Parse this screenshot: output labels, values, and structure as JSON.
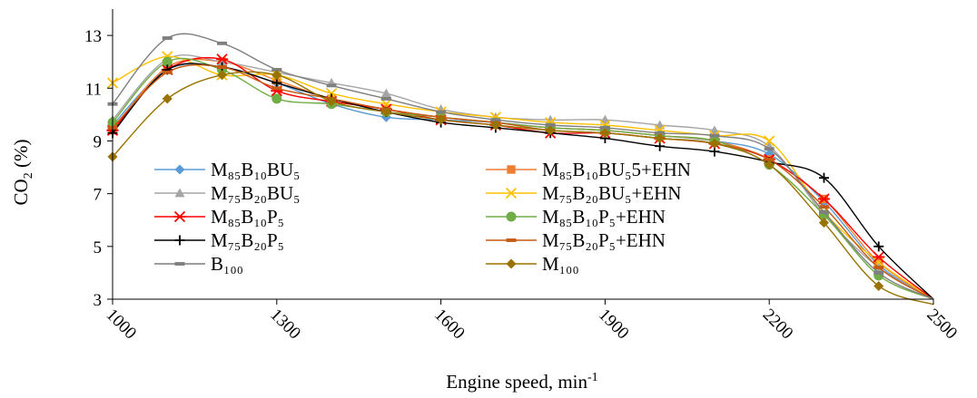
{
  "chart_data": {
    "type": "line",
    "xlabel": "Engine speed, min",
    "xlabel_sup": "-1",
    "ylabel": "CO",
    "ylabel_sub": "2",
    "ylabel_unit": " (%)",
    "xlim": [
      1000,
      2500
    ],
    "ylim": [
      3,
      14
    ],
    "x_ticks": [
      1000,
      1300,
      1600,
      1900,
      2200,
      2500
    ],
    "y_ticks": [
      3,
      5,
      7,
      9,
      11,
      13
    ],
    "grid": false,
    "legend_position": "lower-left, two columns",
    "x": [
      1000,
      1100,
      1200,
      1300,
      1400,
      1500,
      1600,
      1700,
      1800,
      1900,
      2000,
      2100,
      2200,
      2300,
      2400,
      2500
    ],
    "series": [
      {
        "name": "M₈₅B₁₀BU₅",
        "color": "#5b9bd5",
        "marker": "diamond",
        "values": [
          9.6,
          11.7,
          11.8,
          11.2,
          10.4,
          9.9,
          9.8,
          9.7,
          9.5,
          9.4,
          9.2,
          9.0,
          8.5,
          6.7,
          4.3,
          3.0
        ]
      },
      {
        "name": "M₈₅B₁₀BU₅5+EHN",
        "color": "#ed7d31",
        "marker": "square",
        "values": [
          9.4,
          11.8,
          12.0,
          11.3,
          10.6,
          10.2,
          9.9,
          9.7,
          9.5,
          9.4,
          9.2,
          9.0,
          8.3,
          6.8,
          4.4,
          3.0
        ]
      },
      {
        "name": "M₇₅B₂₀BU₅",
        "color": "#a5a5a5",
        "marker": "triangle",
        "values": [
          9.8,
          12.1,
          12.0,
          11.6,
          11.2,
          10.8,
          10.2,
          9.9,
          9.8,
          9.8,
          9.6,
          9.4,
          8.8,
          6.2,
          4.2,
          3.0
        ]
      },
      {
        "name": "M₇₅B₂₀BU₅+EHN",
        "color": "#ffc000",
        "marker": "x",
        "values": [
          11.2,
          12.2,
          11.5,
          11.5,
          10.8,
          10.4,
          10.1,
          9.9,
          9.7,
          9.6,
          9.4,
          9.2,
          9.0,
          6.3,
          4.4,
          3.0
        ]
      },
      {
        "name": "M₈₅B₁₀P₅",
        "color": "#ff0000",
        "marker": "star",
        "values": [
          9.4,
          11.7,
          12.1,
          10.9,
          10.5,
          10.2,
          9.8,
          9.6,
          9.3,
          9.3,
          9.1,
          8.9,
          8.3,
          6.8,
          4.6,
          3.0
        ]
      },
      {
        "name": "M₈₅B₁₀P₅+EHN",
        "color": "#70ad47",
        "marker": "circle",
        "values": [
          9.7,
          12.0,
          11.7,
          10.6,
          10.4,
          10.1,
          9.9,
          9.7,
          9.5,
          9.4,
          9.2,
          9.0,
          8.1,
          6.2,
          3.9,
          3.0
        ]
      },
      {
        "name": "M₇₅B₂₀P₅",
        "color": "#000000",
        "marker": "plus",
        "values": [
          9.3,
          11.7,
          11.8,
          11.2,
          10.6,
          10.1,
          9.7,
          9.5,
          9.3,
          9.1,
          8.8,
          8.6,
          8.2,
          7.6,
          5.0,
          3.0
        ]
      },
      {
        "name": "M₇₅B₂₀P₅+EHN",
        "color": "#c55a11",
        "marker": "dash",
        "values": [
          9.5,
          11.6,
          11.8,
          11.0,
          10.6,
          10.2,
          9.9,
          9.7,
          9.4,
          9.3,
          9.1,
          8.9,
          8.3,
          6.5,
          4.2,
          3.0
        ]
      },
      {
        "name": "B₁₀₀",
        "color": "#7f7f7f",
        "marker": "dash",
        "values": [
          10.4,
          12.9,
          12.7,
          11.7,
          11.1,
          10.6,
          10.1,
          9.8,
          9.6,
          9.5,
          9.3,
          9.2,
          8.7,
          6.3,
          4.0,
          3.0
        ]
      },
      {
        "name": "M₁₀₀",
        "color": "#997300",
        "marker": "diamond",
        "values": [
          8.4,
          10.6,
          11.5,
          11.5,
          10.5,
          10.1,
          9.8,
          9.6,
          9.4,
          9.3,
          9.1,
          8.9,
          8.1,
          5.9,
          3.5,
          2.8
        ]
      }
    ]
  }
}
